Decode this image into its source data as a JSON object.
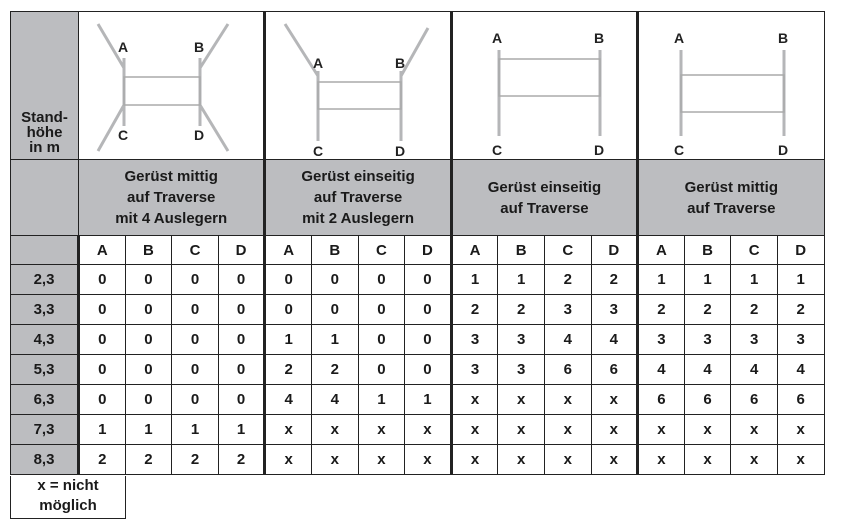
{
  "header": {
    "first_col": [
      "Stand-",
      "höhe",
      "in m"
    ]
  },
  "groups": [
    {
      "diagram": "scaffold-center-4-outriggers-icon",
      "title": [
        "Gerüst mittig",
        "auf Traverse",
        "mit 4 Auslegern"
      ]
    },
    {
      "diagram": "scaffold-one-side-2-outriggers-icon",
      "title": [
        "Gerüst einseitig",
        "auf Traverse",
        "mit 2 Auslegern"
      ]
    },
    {
      "diagram": "scaffold-one-side-icon",
      "title": [
        "Gerüst einseitig",
        "auf Traverse"
      ]
    },
    {
      "diagram": "scaffold-center-icon",
      "title": [
        "Gerüst mittig",
        "auf Traverse"
      ]
    }
  ],
  "corners": [
    "A",
    "B",
    "C",
    "D"
  ],
  "rows": [
    {
      "h": "2,3",
      "v": [
        "0",
        "0",
        "0",
        "0",
        "0",
        "0",
        "0",
        "0",
        "1",
        "1",
        "2",
        "2",
        "1",
        "1",
        "1",
        "1"
      ]
    },
    {
      "h": "3,3",
      "v": [
        "0",
        "0",
        "0",
        "0",
        "0",
        "0",
        "0",
        "0",
        "2",
        "2",
        "3",
        "3",
        "2",
        "2",
        "2",
        "2"
      ]
    },
    {
      "h": "4,3",
      "v": [
        "0",
        "0",
        "0",
        "0",
        "1",
        "1",
        "0",
        "0",
        "3",
        "3",
        "4",
        "4",
        "3",
        "3",
        "3",
        "3"
      ]
    },
    {
      "h": "5,3",
      "v": [
        "0",
        "0",
        "0",
        "0",
        "2",
        "2",
        "0",
        "0",
        "3",
        "3",
        "6",
        "6",
        "4",
        "4",
        "4",
        "4"
      ]
    },
    {
      "h": "6,3",
      "v": [
        "0",
        "0",
        "0",
        "0",
        "4",
        "4",
        "1",
        "1",
        "x",
        "x",
        "x",
        "x",
        "6",
        "6",
        "6",
        "6"
      ]
    },
    {
      "h": "7,3",
      "v": [
        "1",
        "1",
        "1",
        "1",
        "x",
        "x",
        "x",
        "x",
        "x",
        "x",
        "x",
        "x",
        "x",
        "x",
        "x",
        "x"
      ]
    },
    {
      "h": "8,3",
      "v": [
        "2",
        "2",
        "2",
        "2",
        "x",
        "x",
        "x",
        "x",
        "x",
        "x",
        "x",
        "x",
        "x",
        "x",
        "x",
        "x"
      ]
    }
  ],
  "footnote": [
    "x = nicht",
    "möglich"
  ],
  "colors": {
    "header_gray": "#bcbdc0",
    "lines": "#222222",
    "scaffold": "#b5b6b8"
  }
}
